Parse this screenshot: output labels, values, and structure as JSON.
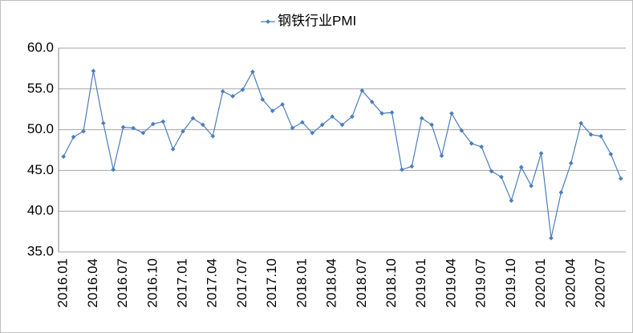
{
  "chart_data": {
    "type": "line",
    "series": [
      {
        "name": "钢铁行业PMI",
        "color": "#4a7ebb",
        "values": [
          46.7,
          49.1,
          49.8,
          57.2,
          50.8,
          45.1,
          50.3,
          50.2,
          49.6,
          50.7,
          51.0,
          47.6,
          49.8,
          51.4,
          50.6,
          49.2,
          54.7,
          54.1,
          54.9,
          57.1,
          53.7,
          52.3,
          53.1,
          50.2,
          50.9,
          49.6,
          50.6,
          51.6,
          50.6,
          51.6,
          54.8,
          53.4,
          52.0,
          52.1,
          45.1,
          45.5,
          51.4,
          50.6,
          46.8,
          52.0,
          49.9,
          48.3,
          47.9,
          44.9,
          44.2,
          41.3,
          45.4,
          43.1,
          47.1,
          36.7,
          42.3,
          45.9,
          50.8,
          49.4,
          49.2,
          47.0,
          44.0
        ]
      }
    ],
    "categories": [
      "2016.01",
      null,
      null,
      "2016.04",
      null,
      null,
      "2016.07",
      null,
      null,
      "2016.10",
      null,
      null,
      "2017.01",
      null,
      null,
      "2017.04",
      null,
      null,
      "2017.07",
      null,
      null,
      "2017.10",
      null,
      null,
      "2018.01",
      null,
      null,
      "2018.04",
      null,
      null,
      "2018.07",
      null,
      null,
      "2018.10",
      null,
      null,
      "2019.01",
      null,
      null,
      "2019.04",
      null,
      null,
      "2019.07",
      null,
      null,
      "2019.10",
      null,
      null,
      "2020.01",
      null,
      null,
      "2020.04",
      null,
      null,
      "2020.07",
      null,
      null
    ],
    "ylim": [
      35,
      60
    ],
    "yticks": [
      {
        "value": 35,
        "label": "35.0"
      },
      {
        "value": 40,
        "label": "40.0"
      },
      {
        "value": 45,
        "label": "45.0"
      },
      {
        "value": 50,
        "label": "50.0"
      },
      {
        "value": 55,
        "label": "55.0"
      },
      {
        "value": 60,
        "label": "60.0"
      }
    ],
    "grid": true,
    "legend": "top"
  }
}
